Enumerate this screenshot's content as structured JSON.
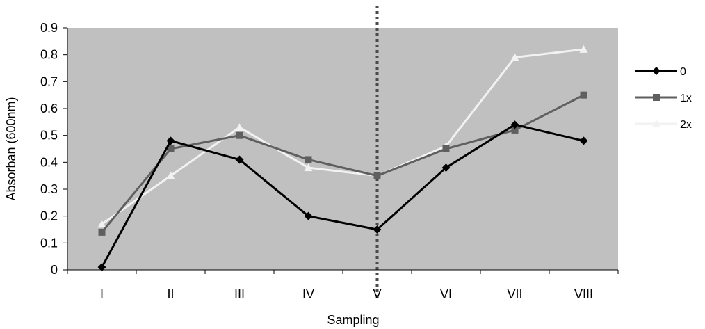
{
  "chart_data": {
    "type": "line",
    "title": "",
    "xlabel": "Sampling",
    "ylabel": "Absorban (600nm)",
    "categories": [
      "I",
      "II",
      "III",
      "IV",
      "V",
      "VI",
      "VII",
      "VIII"
    ],
    "ylim": [
      0,
      0.9
    ],
    "yticks": [
      "0",
      "0.1",
      "0.2",
      "0.3",
      "0.4",
      "0.5",
      "0.6",
      "0.7",
      "0.8",
      "0.9"
    ],
    "grid": false,
    "legend_position": "right",
    "plot_background": "#c0c0c0",
    "reference_line": {
      "category": "V",
      "style": "dotted",
      "color": "#4a4a4a"
    },
    "series": [
      {
        "name": "0",
        "marker": "diamond",
        "color": "#000000",
        "values": [
          0.01,
          0.48,
          0.41,
          0.2,
          0.15,
          0.38,
          0.54,
          0.48
        ]
      },
      {
        "name": "1x",
        "marker": "square",
        "color": "#5f5f5f",
        "values": [
          0.14,
          0.45,
          0.5,
          0.41,
          0.35,
          0.45,
          0.52,
          0.65
        ]
      },
      {
        "name": "2x",
        "marker": "triangle",
        "color": "#f2f2f2",
        "values": [
          0.17,
          0.35,
          0.53,
          0.38,
          0.35,
          0.46,
          0.79,
          0.82
        ]
      }
    ]
  }
}
